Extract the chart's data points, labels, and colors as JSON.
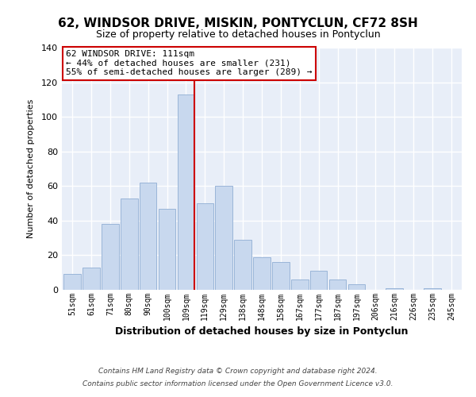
{
  "title": "62, WINDSOR DRIVE, MISKIN, PONTYCLUN, CF72 8SH",
  "subtitle": "Size of property relative to detached houses in Pontyclun",
  "xlabel": "Distribution of detached houses by size in Pontyclun",
  "ylabel": "Number of detached properties",
  "bar_labels": [
    "51sqm",
    "61sqm",
    "71sqm",
    "80sqm",
    "90sqm",
    "100sqm",
    "109sqm",
    "119sqm",
    "129sqm",
    "138sqm",
    "148sqm",
    "158sqm",
    "167sqm",
    "177sqm",
    "187sqm",
    "197sqm",
    "206sqm",
    "216sqm",
    "226sqm",
    "235sqm",
    "245sqm"
  ],
  "bar_values": [
    9,
    13,
    38,
    53,
    62,
    47,
    113,
    50,
    60,
    29,
    19,
    16,
    6,
    11,
    6,
    3,
    0,
    1,
    0,
    1,
    0
  ],
  "bar_color": "#c8d8ee",
  "bar_edge_color": "#9ab5d8",
  "vline_x": 6,
  "vline_color": "#cc0000",
  "annotation_title": "62 WINDSOR DRIVE: 111sqm",
  "annotation_line1": "← 44% of detached houses are smaller (231)",
  "annotation_line2": "55% of semi-detached houses are larger (289) →",
  "annotation_box_color": "#ffffff",
  "annotation_box_edge": "#cc0000",
  "plot_bg_color": "#e8eef8",
  "ylim": [
    0,
    140
  ],
  "yticks": [
    0,
    20,
    40,
    60,
    80,
    100,
    120,
    140
  ],
  "footer1": "Contains HM Land Registry data © Crown copyright and database right 2024.",
  "footer2": "Contains public sector information licensed under the Open Government Licence v3.0."
}
